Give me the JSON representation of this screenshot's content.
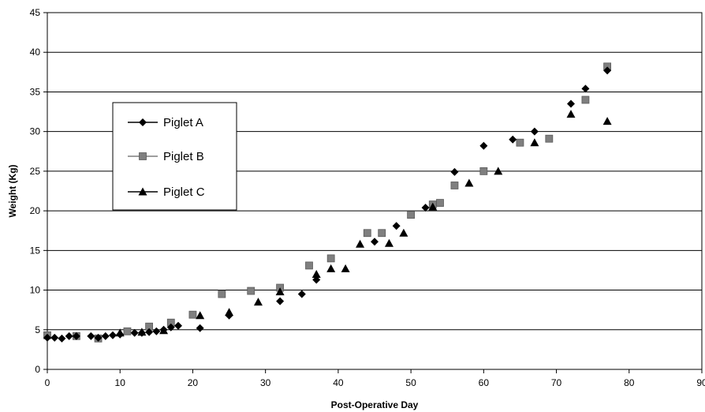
{
  "chart_data": {
    "type": "scatter",
    "title": "",
    "xlabel": "Post-Operative Day",
    "ylabel": "Weight (Kg)",
    "xlim": [
      0,
      90
    ],
    "ylim": [
      0,
      45
    ],
    "x_ticks": [
      "0",
      "10",
      "20",
      "30",
      "40",
      "50",
      "60",
      "70",
      "80",
      "90"
    ],
    "y_ticks": [
      "0",
      "5",
      "10",
      "15",
      "20",
      "25",
      "30",
      "35",
      "40",
      "45"
    ],
    "grid": "horizontal",
    "legend_position": "left",
    "series": [
      {
        "name": "Piglet A",
        "marker": "diamond",
        "color": "#000000",
        "points": [
          [
            0,
            4.0
          ],
          [
            1,
            4.0
          ],
          [
            2,
            3.9
          ],
          [
            3,
            4.2
          ],
          [
            4,
            4.2
          ],
          [
            6,
            4.2
          ],
          [
            7,
            4.0
          ],
          [
            8,
            4.2
          ],
          [
            9,
            4.3
          ],
          [
            10,
            4.4
          ],
          [
            12,
            4.6
          ],
          [
            13,
            4.6
          ],
          [
            14,
            4.7
          ],
          [
            15,
            4.8
          ],
          [
            16,
            5.0
          ],
          [
            17,
            5.3
          ],
          [
            18,
            5.5
          ],
          [
            21,
            5.2
          ],
          [
            25,
            6.8
          ],
          [
            32,
            8.6
          ],
          [
            35,
            9.5
          ],
          [
            37,
            11.3
          ],
          [
            45,
            16.1
          ],
          [
            48,
            18.1
          ],
          [
            52,
            20.4
          ],
          [
            56,
            24.9
          ],
          [
            60,
            28.2
          ],
          [
            64,
            29.0
          ],
          [
            67,
            30.0
          ],
          [
            72,
            33.5
          ],
          [
            74,
            35.4
          ],
          [
            77,
            37.7
          ]
        ]
      },
      {
        "name": "Piglet B",
        "marker": "square",
        "color": "#7f7f7f",
        "points": [
          [
            0,
            4.3
          ],
          [
            4,
            4.2
          ],
          [
            7,
            3.9
          ],
          [
            11,
            4.8
          ],
          [
            14,
            5.4
          ],
          [
            17,
            5.9
          ],
          [
            20,
            6.9
          ],
          [
            24,
            9.5
          ],
          [
            28,
            9.9
          ],
          [
            32,
            10.3
          ],
          [
            36,
            13.1
          ],
          [
            39,
            14.0
          ],
          [
            44,
            17.2
          ],
          [
            46,
            17.2
          ],
          [
            50,
            19.5
          ],
          [
            53,
            20.8
          ],
          [
            54,
            21.0
          ],
          [
            56,
            23.2
          ],
          [
            60,
            25.0
          ],
          [
            65,
            28.6
          ],
          [
            69,
            29.1
          ],
          [
            74,
            34.0
          ],
          [
            77,
            38.2
          ]
        ]
      },
      {
        "name": "Piglet C",
        "marker": "triangle",
        "color": "#000000",
        "points": [
          [
            10,
            4.6
          ],
          [
            13,
            4.7
          ],
          [
            16,
            4.9
          ],
          [
            21,
            6.8
          ],
          [
            25,
            7.2
          ],
          [
            29,
            8.5
          ],
          [
            32,
            9.8
          ],
          [
            37,
            12.0
          ],
          [
            39,
            12.7
          ],
          [
            41,
            12.7
          ],
          [
            43,
            15.8
          ],
          [
            47,
            15.9
          ],
          [
            49,
            17.2
          ],
          [
            53,
            20.5
          ],
          [
            58,
            23.5
          ],
          [
            62,
            25.0
          ],
          [
            67,
            28.6
          ],
          [
            72,
            32.2
          ],
          [
            77,
            31.3
          ]
        ]
      }
    ]
  }
}
